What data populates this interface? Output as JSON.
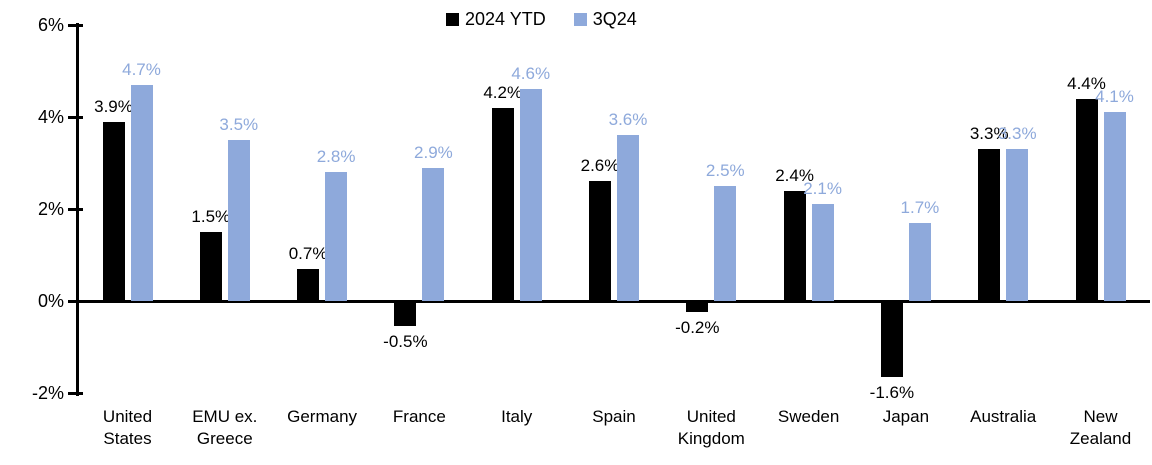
{
  "chart_data": {
    "type": "bar",
    "title": "",
    "categories": [
      "United States",
      "EMU ex. Greece",
      "Germany",
      "France",
      "Italy",
      "Spain",
      "United Kingdom",
      "Sweden",
      "Japan",
      "Australia",
      "New Zealand"
    ],
    "series": [
      {
        "name": "2024 YTD",
        "color": "#000000",
        "label_color": "#000000",
        "values": [
          3.9,
          1.5,
          0.7,
          -0.5,
          4.2,
          2.6,
          -0.2,
          2.4,
          -1.6,
          3.3,
          4.4
        ]
      },
      {
        "name": "3Q24",
        "color": "#8EA9DB",
        "label_color": "#8EA9DB",
        "values": [
          4.7,
          3.5,
          2.8,
          2.9,
          4.6,
          3.6,
          2.5,
          2.1,
          1.7,
          3.3,
          4.1
        ]
      }
    ],
    "value_suffix": "%",
    "value_decimals": 1,
    "xlabel": "",
    "ylabel": "",
    "ylim": [
      -2,
      6
    ],
    "yticks": [
      {
        "label": "6%",
        "value": 6
      },
      {
        "label": "4%",
        "value": 4
      },
      {
        "label": "2%",
        "value": 2
      },
      {
        "label": "0%",
        "value": 0
      },
      {
        "label": "-2%",
        "value": -2
      }
    ],
    "legend_position": "top",
    "grid": false,
    "data_labels": true,
    "axis_color": "#000000"
  }
}
